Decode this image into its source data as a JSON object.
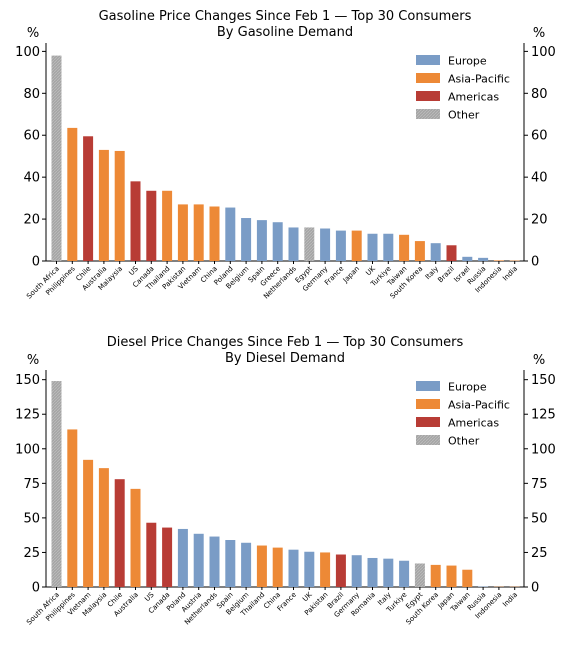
{
  "colors": {
    "Europe": "#7a9cc6",
    "Asia-Pacific": "#ed8936",
    "Americas": "#b83c35",
    "Other": "#a5a5a5"
  },
  "chart_data": [
    {
      "type": "bar",
      "title": "Gasoline Price Changes Since Feb 1 — Top 30 Consumers",
      "subtitle": "By Gasoline Demand",
      "ylabel": "%",
      "ylim": [
        0,
        104
      ],
      "yticks": [
        0,
        20,
        40,
        60,
        80,
        100
      ],
      "grid": false,
      "legend_position": "top-right",
      "legend": [
        "Europe",
        "Asia-Pacific",
        "Americas",
        "Other"
      ],
      "categories": [
        "South Africa",
        "Philippines",
        "Chile",
        "Australia",
        "Malaysia",
        "US",
        "Canada",
        "Thailand",
        "Pakistan",
        "Vietnam",
        "China",
        "Poland",
        "Belgium",
        "Spain",
        "Greece",
        "Netherlands",
        "Egypt",
        "Germany",
        "France",
        "Japan",
        "UK",
        "Turkiye",
        "Taiwan",
        "South Korea",
        "Italy",
        "Brazil",
        "Israel",
        "Russia",
        "Indonesia",
        "India"
      ],
      "values": [
        98,
        63.5,
        59.5,
        53,
        52.5,
        38,
        33.5,
        33.5,
        27,
        27,
        26,
        25.5,
        20.5,
        19.5,
        18.5,
        16,
        16,
        15.5,
        14.5,
        14.5,
        13,
        13,
        12.5,
        9.5,
        8.5,
        7.5,
        2,
        1.5,
        0.3,
        0.2
      ],
      "regions": [
        "Other",
        "Asia-Pacific",
        "Americas",
        "Asia-Pacific",
        "Asia-Pacific",
        "Americas",
        "Americas",
        "Asia-Pacific",
        "Asia-Pacific",
        "Asia-Pacific",
        "Asia-Pacific",
        "Europe",
        "Europe",
        "Europe",
        "Europe",
        "Europe",
        "Other",
        "Europe",
        "Europe",
        "Asia-Pacific",
        "Europe",
        "Europe",
        "Asia-Pacific",
        "Asia-Pacific",
        "Europe",
        "Americas",
        "Europe",
        "Europe",
        "Asia-Pacific",
        "Asia-Pacific"
      ]
    },
    {
      "type": "bar",
      "title": "Diesel Price Changes Since Feb 1 — Top 30 Consumers",
      "subtitle": "By Diesel Demand",
      "ylabel": "%",
      "ylim": [
        0,
        157
      ],
      "yticks": [
        0,
        25,
        50,
        75,
        100,
        125,
        150
      ],
      "grid": false,
      "legend_position": "top-right",
      "legend": [
        "Europe",
        "Asia-Pacific",
        "Americas",
        "Other"
      ],
      "categories": [
        "South Africa",
        "Philippines",
        "Vietnam",
        "Malaysia",
        "Chile",
        "Australia",
        "US",
        "Canada",
        "Poland",
        "Austria",
        "Netherlands",
        "Spain",
        "Belgium",
        "Thailand",
        "China",
        "France",
        "UK",
        "Pakistan",
        "Brazil",
        "Germany",
        "Romania",
        "Italy",
        "Turkiye",
        "Egypt",
        "South Korea",
        "Japan",
        "Taiwan",
        "Russia",
        "Indonesia",
        "India"
      ],
      "values": [
        149,
        114,
        92,
        86,
        78,
        71,
        46.5,
        43,
        42,
        38.5,
        36.5,
        34,
        32,
        30,
        28.5,
        27,
        25.5,
        25,
        23.5,
        23,
        21,
        20.5,
        19,
        17,
        16,
        15.5,
        12.5,
        0.3,
        0.2,
        0.2
      ],
      "regions": [
        "Other",
        "Asia-Pacific",
        "Asia-Pacific",
        "Asia-Pacific",
        "Americas",
        "Asia-Pacific",
        "Americas",
        "Americas",
        "Europe",
        "Europe",
        "Europe",
        "Europe",
        "Europe",
        "Asia-Pacific",
        "Asia-Pacific",
        "Europe",
        "Europe",
        "Asia-Pacific",
        "Americas",
        "Europe",
        "Europe",
        "Europe",
        "Europe",
        "Other",
        "Asia-Pacific",
        "Asia-Pacific",
        "Asia-Pacific",
        "Europe",
        "Asia-Pacific",
        "Asia-Pacific"
      ]
    }
  ]
}
